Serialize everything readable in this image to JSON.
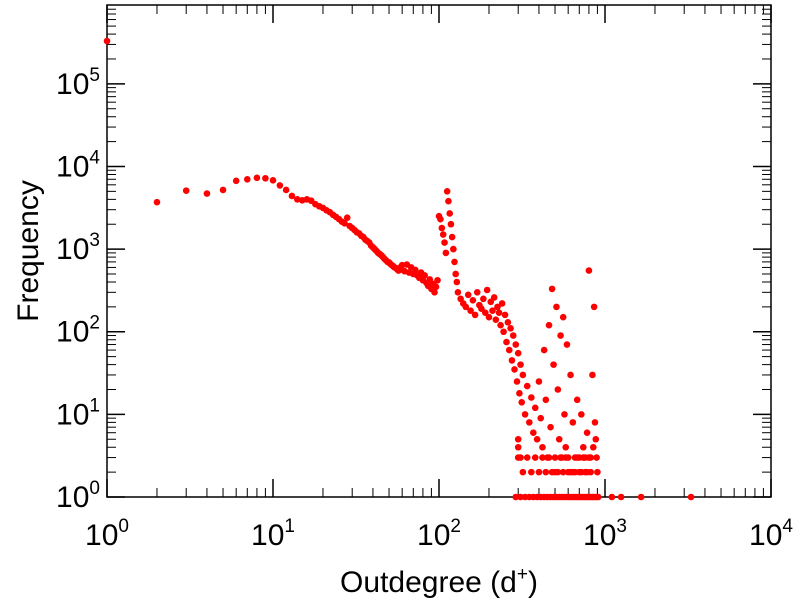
{
  "chart_data": {
    "type": "scatter",
    "title": "",
    "xlabel": {
      "main": "Outdegree (d",
      "sup": "+",
      "close": ")"
    },
    "ylabel": "Frequency",
    "xscale": "log",
    "yscale": "log",
    "xlim": [
      1,
      10000
    ],
    "ylim": [
      1,
      900000
    ],
    "x_ticks": [
      {
        "value": 1,
        "base": "10",
        "exp": "0"
      },
      {
        "value": 10,
        "base": "10",
        "exp": "1"
      },
      {
        "value": 100,
        "base": "10",
        "exp": "2"
      },
      {
        "value": 1000,
        "base": "10",
        "exp": "3"
      },
      {
        "value": 10000,
        "base": "10",
        "exp": "4"
      }
    ],
    "y_ticks": [
      {
        "value": 1,
        "base": "10",
        "exp": "0"
      },
      {
        "value": 10,
        "base": "10",
        "exp": "1"
      },
      {
        "value": 100,
        "base": "10",
        "exp": "2"
      },
      {
        "value": 1000,
        "base": "10",
        "exp": "3"
      },
      {
        "value": 10000,
        "base": "10",
        "exp": "4"
      },
      {
        "value": 100000,
        "base": "10",
        "exp": "5"
      }
    ],
    "grid": false,
    "legend": "none",
    "marker_color": "#ff0000",
    "series": [
      {
        "points": [
          [
            1,
            330000
          ],
          [
            2,
            3700
          ],
          [
            3,
            5100
          ],
          [
            4,
            4700
          ],
          [
            5,
            5200
          ],
          [
            6,
            6700
          ],
          [
            7,
            7000
          ],
          [
            8,
            7300
          ],
          [
            9,
            7200
          ],
          [
            10,
            6800
          ],
          [
            11,
            5900
          ],
          [
            12,
            5200
          ],
          [
            13,
            4400
          ],
          [
            14,
            4000
          ],
          [
            15,
            3900
          ],
          [
            16,
            4000
          ],
          [
            17,
            3850
          ],
          [
            18,
            3500
          ],
          [
            19,
            3300
          ],
          [
            20,
            3150
          ],
          [
            21,
            2950
          ],
          [
            22,
            2800
          ],
          [
            23,
            2600
          ],
          [
            24,
            2450
          ],
          [
            25,
            2300
          ],
          [
            26,
            2150
          ],
          [
            27,
            2050
          ],
          [
            28,
            2400
          ],
          [
            29,
            1900
          ],
          [
            30,
            1800
          ],
          [
            31,
            1700
          ],
          [
            32,
            1600
          ],
          [
            33,
            1550
          ],
          [
            34,
            1450
          ],
          [
            35,
            1400
          ],
          [
            36,
            1300
          ],
          [
            37,
            1250
          ],
          [
            38,
            1200
          ],
          [
            39,
            1100
          ],
          [
            40,
            1050
          ],
          [
            41,
            1000
          ],
          [
            42,
            950
          ],
          [
            43,
            900
          ],
          [
            44,
            870
          ],
          [
            45,
            840
          ],
          [
            46,
            800
          ],
          [
            47,
            760
          ],
          [
            48,
            730
          ],
          [
            49,
            700
          ],
          [
            50,
            690
          ],
          [
            51,
            660
          ],
          [
            52,
            640
          ],
          [
            53,
            620
          ],
          [
            54,
            600
          ],
          [
            55,
            590
          ],
          [
            56,
            570
          ],
          [
            57,
            550
          ],
          [
            58,
            560
          ],
          [
            59,
            610
          ],
          [
            60,
            640
          ],
          [
            62,
            540
          ],
          [
            64,
            650
          ],
          [
            66,
            520
          ],
          [
            68,
            600
          ],
          [
            70,
            500
          ],
          [
            72,
            560
          ],
          [
            74,
            480
          ],
          [
            76,
            450
          ],
          [
            78,
            520
          ],
          [
            80,
            420
          ],
          [
            82,
            480
          ],
          [
            84,
            390
          ],
          [
            86,
            360
          ],
          [
            88,
            430
          ],
          [
            90,
            330
          ],
          [
            92,
            380
          ],
          [
            94,
            300
          ],
          [
            96,
            350
          ],
          [
            98,
            420
          ],
          [
            100,
            2500
          ],
          [
            102,
            2300
          ],
          [
            104,
            1800
          ],
          [
            106,
            1500
          ],
          [
            108,
            1200
          ],
          [
            110,
            900
          ],
          [
            112,
            5000
          ],
          [
            114,
            3800
          ],
          [
            116,
            2700
          ],
          [
            118,
            2000
          ],
          [
            120,
            1400
          ],
          [
            122,
            1000
          ],
          [
            124,
            700
          ],
          [
            126,
            500
          ],
          [
            128,
            400
          ],
          [
            130,
            300
          ],
          [
            135,
            250
          ],
          [
            140,
            220
          ],
          [
            145,
            200
          ],
          [
            150,
            280
          ],
          [
            155,
            180
          ],
          [
            160,
            240
          ],
          [
            165,
            160
          ],
          [
            170,
            300
          ],
          [
            175,
            210
          ],
          [
            180,
            190
          ],
          [
            185,
            250
          ],
          [
            190,
            170
          ],
          [
            195,
            320
          ],
          [
            200,
            150
          ],
          [
            205,
            230
          ],
          [
            210,
            180
          ],
          [
            215,
            260
          ],
          [
            220,
            140
          ],
          [
            225,
            200
          ],
          [
            230,
            170
          ],
          [
            235,
            120
          ],
          [
            240,
            220
          ],
          [
            245,
            100
          ],
          [
            250,
            160
          ],
          [
            255,
            75
          ],
          [
            260,
            130
          ],
          [
            265,
            60
          ],
          [
            270,
            110
          ],
          [
            275,
            45
          ],
          [
            280,
            90
          ],
          [
            285,
            35
          ],
          [
            290,
            70
          ],
          [
            295,
            25
          ],
          [
            300,
            55
          ],
          [
            305,
            18
          ],
          [
            310,
            40
          ],
          [
            315,
            14
          ],
          [
            320,
            30
          ],
          [
            330,
            10
          ],
          [
            340,
            22
          ],
          [
            350,
            8
          ],
          [
            360,
            16
          ],
          [
            370,
            6
          ],
          [
            380,
            12
          ],
          [
            390,
            5
          ],
          [
            400,
            25
          ],
          [
            410,
            9
          ],
          [
            420,
            4
          ],
          [
            430,
            60
          ],
          [
            440,
            15
          ],
          [
            450,
            3
          ],
          [
            460,
            120
          ],
          [
            470,
            7
          ],
          [
            480,
            330
          ],
          [
            490,
            40
          ],
          [
            500,
            2
          ],
          [
            510,
            200
          ],
          [
            520,
            20
          ],
          [
            530,
            5
          ],
          [
            540,
            90
          ],
          [
            550,
            3
          ],
          [
            560,
            150
          ],
          [
            570,
            10
          ],
          [
            580,
            4
          ],
          [
            590,
            70
          ],
          [
            600,
            2
          ],
          [
            620,
            30
          ],
          [
            640,
            8
          ],
          [
            660,
            3
          ],
          [
            680,
            15
          ],
          [
            700,
            2
          ],
          [
            720,
            10
          ],
          [
            740,
            4
          ],
          [
            760,
            2
          ],
          [
            780,
            6
          ],
          [
            800,
            550
          ],
          [
            820,
            2
          ],
          [
            840,
            30
          ],
          [
            860,
            200
          ],
          [
            880,
            5
          ],
          [
            900,
            2
          ],
          [
            300,
            3
          ],
          [
            300,
            4
          ],
          [
            300,
            5
          ],
          [
            310,
            3
          ],
          [
            320,
            2
          ],
          [
            340,
            3
          ],
          [
            360,
            2
          ],
          [
            380,
            3
          ],
          [
            400,
            2
          ],
          [
            420,
            3
          ],
          [
            440,
            2
          ],
          [
            460,
            3
          ],
          [
            480,
            2
          ],
          [
            500,
            3
          ],
          [
            520,
            2
          ],
          [
            540,
            3
          ],
          [
            560,
            2
          ],
          [
            580,
            3
          ],
          [
            600,
            3
          ],
          [
            620,
            2
          ],
          [
            640,
            2
          ],
          [
            660,
            2
          ],
          [
            680,
            3
          ],
          [
            700,
            3
          ],
          [
            720,
            2
          ],
          [
            740,
            3
          ],
          [
            760,
            3
          ],
          [
            780,
            2
          ],
          [
            800,
            3
          ],
          [
            820,
            3
          ],
          [
            850,
            4
          ],
          [
            870,
            8
          ],
          [
            890,
            3
          ],
          [
            290,
            1
          ],
          [
            310,
            1
          ],
          [
            330,
            1
          ],
          [
            350,
            1
          ],
          [
            370,
            1
          ],
          [
            390,
            1
          ],
          [
            410,
            1
          ],
          [
            430,
            1
          ],
          [
            450,
            1
          ],
          [
            470,
            1
          ],
          [
            490,
            1
          ],
          [
            510,
            1
          ],
          [
            530,
            1
          ],
          [
            550,
            1
          ],
          [
            570,
            1
          ],
          [
            590,
            1
          ],
          [
            610,
            1
          ],
          [
            630,
            1
          ],
          [
            650,
            1
          ],
          [
            670,
            1
          ],
          [
            690,
            1
          ],
          [
            710,
            1
          ],
          [
            730,
            1
          ],
          [
            750,
            1
          ],
          [
            770,
            1
          ],
          [
            790,
            1
          ],
          [
            810,
            1
          ],
          [
            830,
            1
          ],
          [
            850,
            1
          ],
          [
            870,
            1
          ],
          [
            890,
            1
          ],
          [
            910,
            1
          ],
          [
            1100,
            1
          ],
          [
            1250,
            1
          ],
          [
            1650,
            1
          ],
          [
            3300,
            1
          ]
        ]
      }
    ]
  }
}
